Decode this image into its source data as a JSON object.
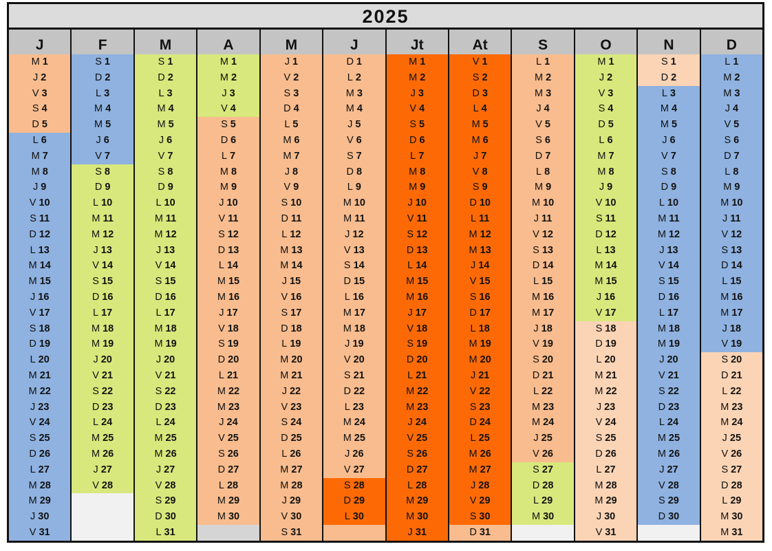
{
  "title": "2025",
  "colors": {
    "peach": "#f8bc8e",
    "light_peach": "#fbd4b5",
    "blue": "#8fb2e0",
    "green": "#d8e87c",
    "orange": "#fd6a05",
    "empty_white": "#f1f1f1",
    "empty_gray": "#d5d5d5"
  },
  "months": [
    {
      "name": "J",
      "days": "MJVSDLMMJVSDLMMJVSDLMMJVSDLMMJV",
      "segments": [
        {
          "from": 1,
          "to": 5,
          "color": "peach"
        },
        {
          "from": 6,
          "to": 31,
          "color": "blue"
        }
      ]
    },
    {
      "name": "F",
      "days": "SDLMMJVSDLMMJVSDLMMJVSDLMMJV",
      "segments": [
        {
          "from": 1,
          "to": 7,
          "color": "blue"
        },
        {
          "from": 8,
          "to": 28,
          "color": "green"
        }
      ],
      "empty_color": "empty_white"
    },
    {
      "name": "M",
      "days": "SDLMMJVSDLMMJVSDLMMJVSDLMMJVSDL",
      "segments": [
        {
          "from": 1,
          "to": 31,
          "color": "green"
        }
      ]
    },
    {
      "name": "A",
      "days": "MMJVSDLMMJVSDLMMJVSDLMMJVSDLMM",
      "segments": [
        {
          "from": 1,
          "to": 4,
          "color": "green"
        },
        {
          "from": 5,
          "to": 30,
          "color": "peach"
        }
      ],
      "empty_color": "empty_gray"
    },
    {
      "name": "M",
      "days": "JVSDLMMJVSDLMMJVSDLMMJVSDLMMJVS",
      "segments": [
        {
          "from": 1,
          "to": 31,
          "color": "peach"
        }
      ]
    },
    {
      "name": "J",
      "days": "DLMMJVSDLMMJVSDLMMJVSDLMMJVSDL",
      "segments": [
        {
          "from": 1,
          "to": 27,
          "color": "peach"
        },
        {
          "from": 28,
          "to": 30,
          "color": "orange"
        }
      ],
      "empty_color": "peach"
    },
    {
      "name": "Jt",
      "days": "MMJVSDLMMJVSDLMMJVSDLMMJVSDLMMJ",
      "segments": [
        {
          "from": 1,
          "to": 31,
          "color": "orange"
        }
      ]
    },
    {
      "name": "At",
      "days": "VSDLMMJVSDLMMJVSDLMMJVSDLMMJVSD",
      "segments": [
        {
          "from": 1,
          "to": 30,
          "color": "orange"
        },
        {
          "from": 31,
          "to": 31,
          "color": "peach"
        }
      ]
    },
    {
      "name": "S",
      "days": "LMMJVSDLMMJVSDLMMJVSDLMMJVSDLM",
      "segments": [
        {
          "from": 1,
          "to": 26,
          "color": "peach"
        },
        {
          "from": 27,
          "to": 30,
          "color": "green"
        }
      ],
      "empty_color": "empty_white"
    },
    {
      "name": "O",
      "days": "MJVSDLMMJVSDLMMJVSDLMMJVSDLMMJV",
      "segments": [
        {
          "from": 1,
          "to": 17,
          "color": "green"
        },
        {
          "from": 18,
          "to": 31,
          "color": "light_peach"
        }
      ]
    },
    {
      "name": "N",
      "days": "SDLMMJVSDLMMJVSDLMMJVSDLMMJVSD",
      "segments": [
        {
          "from": 1,
          "to": 2,
          "color": "light_peach"
        },
        {
          "from": 3,
          "to": 30,
          "color": "blue"
        }
      ],
      "empty_color": "empty_white"
    },
    {
      "name": "D",
      "days": "LMMJVSDLMMJVSDLMMJVSDLMMJVSDLMM",
      "segments": [
        {
          "from": 1,
          "to": 19,
          "color": "blue"
        },
        {
          "from": 20,
          "to": 31,
          "color": "light_peach"
        }
      ]
    }
  ]
}
